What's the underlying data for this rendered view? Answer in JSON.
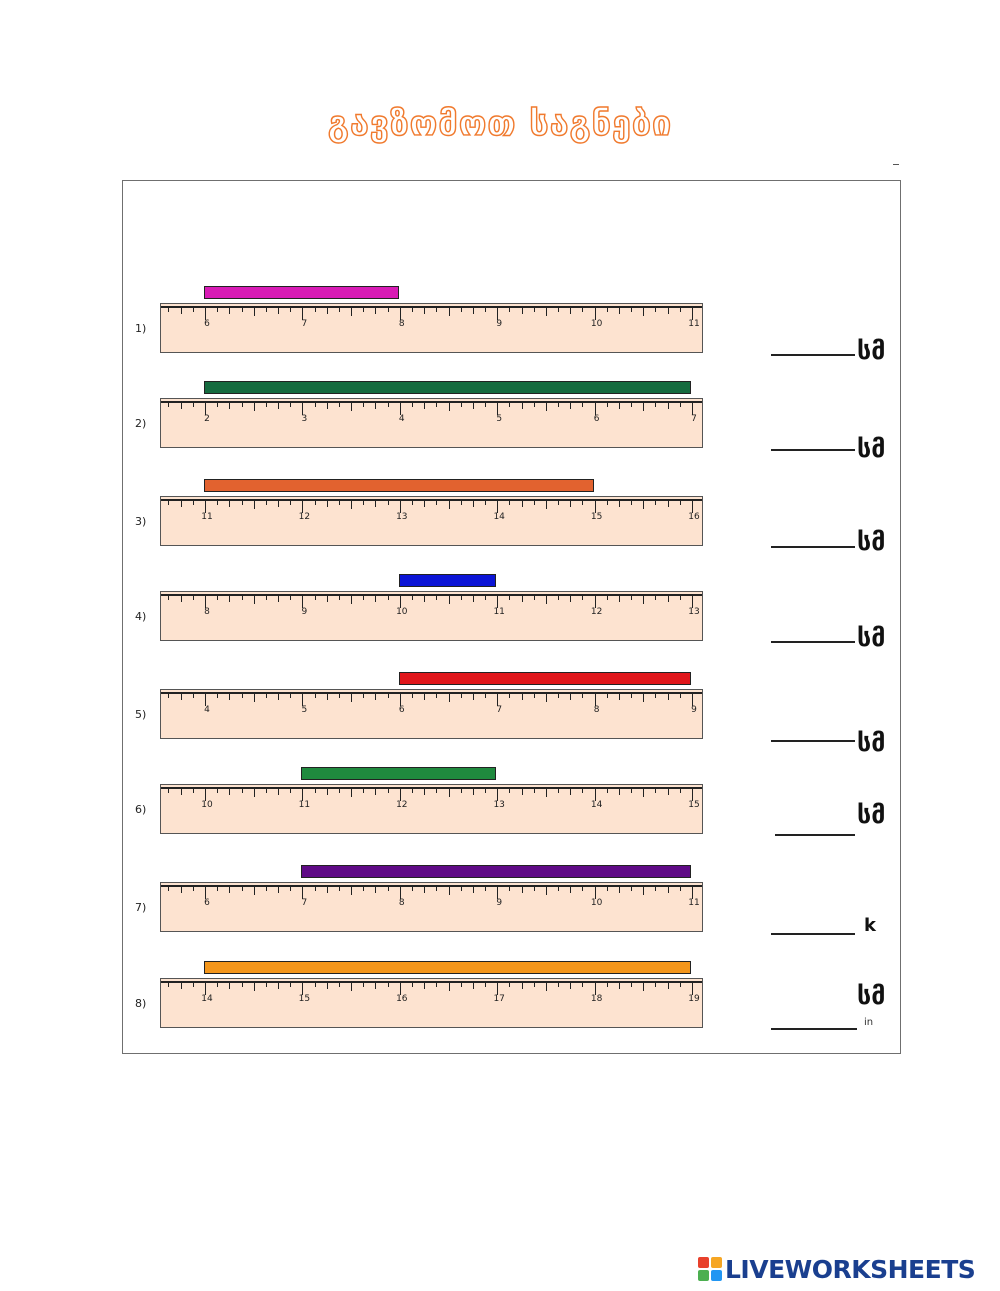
{
  "title": "გავზომოთ საგნები",
  "unit_label": "სმ",
  "partial_unit_label": "k",
  "in_label": "in",
  "brand": {
    "name": "LIVEWORKSHEETS",
    "logo_colors": [
      "#e8412c",
      "#f6a623",
      "#4caf50",
      "#2196f3"
    ],
    "text_color": "#1a3f8f"
  },
  "title_color": "#f07a2e",
  "rulers": [
    {
      "label": "1)",
      "start": 6,
      "end": 11,
      "bar_from": 6,
      "bar_to": 8,
      "bar_color": "#d81bb5"
    },
    {
      "label": "2)",
      "start": 2,
      "end": 7,
      "bar_from": 2,
      "bar_to": 7,
      "bar_color": "#156b3f"
    },
    {
      "label": "3)",
      "start": 11,
      "end": 16,
      "bar_from": 11,
      "bar_to": 15,
      "bar_color": "#e2622f"
    },
    {
      "label": "4)",
      "start": 8,
      "end": 13,
      "bar_from": 10,
      "bar_to": 11,
      "bar_color": "#0b14d6"
    },
    {
      "label": "5)",
      "start": 4,
      "end": 9,
      "bar_from": 6,
      "bar_to": 9,
      "bar_color": "#e0161b"
    },
    {
      "label": "6)",
      "start": 10,
      "end": 15,
      "bar_from": 11,
      "bar_to": 13,
      "bar_color": "#1f8a3e"
    },
    {
      "label": "7)",
      "start": 6,
      "end": 11,
      "bar_from": 7,
      "bar_to": 11,
      "bar_color": "#5f0a86"
    },
    {
      "label": "8)",
      "start": 14,
      "end": 19,
      "bar_from": 14,
      "bar_to": 19,
      "bar_color": "#f4961b"
    }
  ]
}
